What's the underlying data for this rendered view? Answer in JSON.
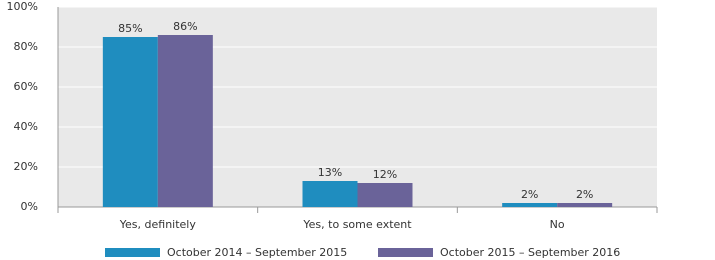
{
  "chart_data": {
    "type": "bar",
    "categories": [
      "Yes, definitely",
      "Yes, to some extent",
      "No"
    ],
    "series": [
      {
        "name": "October 2014 – September 2015",
        "color": "#1f8dbf",
        "values": [
          85,
          13,
          2
        ],
        "value_labels": [
          "85%",
          "13%",
          "2%"
        ]
      },
      {
        "name": "October 2015 – September 2016",
        "color": "#6a6399",
        "values": [
          86,
          12,
          2
        ],
        "value_labels": [
          "86%",
          "12%",
          "2%"
        ]
      }
    ],
    "ylim": [
      0,
      100
    ],
    "yticks": [
      {
        "value": 0,
        "label": "0%"
      },
      {
        "value": 20,
        "label": "20%"
      },
      {
        "value": 40,
        "label": "40%"
      },
      {
        "value": 60,
        "label": "60%"
      },
      {
        "value": 80,
        "label": "80%"
      },
      {
        "value": 100,
        "label": "100%"
      }
    ],
    "grid": true,
    "legend": "bottom"
  }
}
